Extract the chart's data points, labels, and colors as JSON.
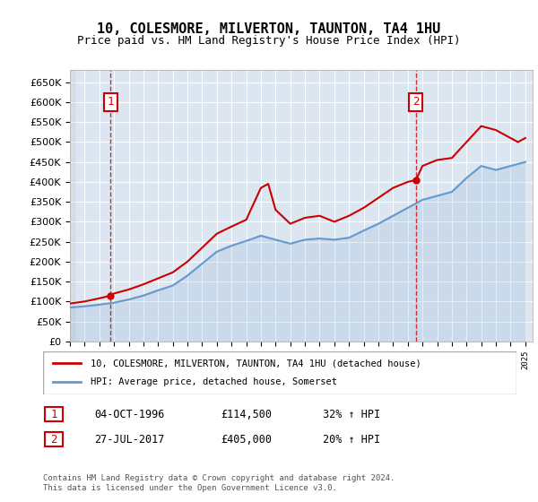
{
  "title": "10, COLESMORE, MILVERTON, TAUNTON, TA4 1HU",
  "subtitle": "Price paid vs. HM Land Registry's House Price Index (HPI)",
  "legend_line1": "10, COLESMORE, MILVERTON, TAUNTON, TA4 1HU (detached house)",
  "legend_line2": "HPI: Average price, detached house, Somerset",
  "annotation1_label": "1",
  "annotation1_date": "04-OCT-1996",
  "annotation1_price": "£114,500",
  "annotation1_hpi": "32% ↑ HPI",
  "annotation2_label": "2",
  "annotation2_date": "27-JUL-2017",
  "annotation2_price": "£405,000",
  "annotation2_hpi": "20% ↑ HPI",
  "footer": "Contains HM Land Registry data © Crown copyright and database right 2024.\nThis data is licensed under the Open Government Licence v3.0.",
  "sale1_year": 1996.75,
  "sale1_value": 114500,
  "sale2_year": 2017.56,
  "sale2_value": 405000,
  "hpi_color": "#6699cc",
  "price_color": "#cc0000",
  "bg_color": "#dce6f1",
  "plot_bg": "#ffffff",
  "ylim": [
    0,
    680000
  ],
  "xlim_start": 1994,
  "xlim_end": 2025.5
}
